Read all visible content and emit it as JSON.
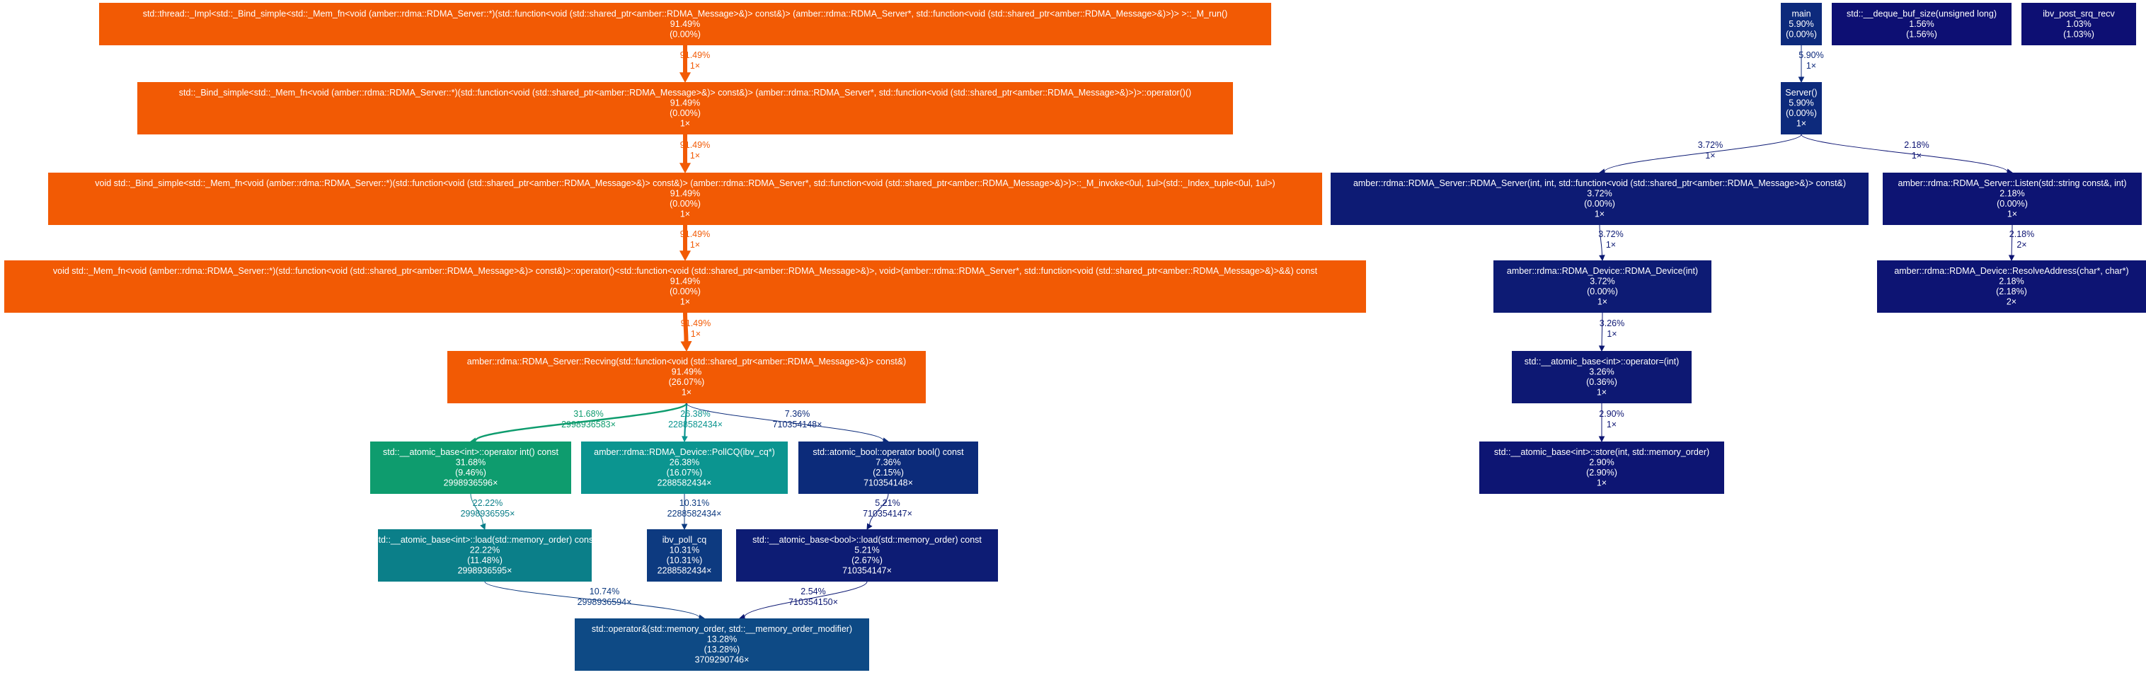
{
  "nodes": [
    {
      "id": "thread_run",
      "color": "#f25a04",
      "lines": [
        "std::thread::_Impl<std::_Bind_simple<std::_Mem_fn<void (amber::rdma::RDMA_Server::*)(std::function<void (std::shared_ptr<amber::RDMA_Message>&)> const&)> (amber::rdma::RDMA_Server*, std::function<void (std::shared_ptr<amber::RDMA_Message>&)>)> >::_M_run()",
        "91.49%",
        "(0.00%)"
      ]
    },
    {
      "id": "bind_op",
      "color": "#f25a04",
      "lines": [
        "std::_Bind_simple<std::_Mem_fn<void (amber::rdma::RDMA_Server::*)(std::function<void (std::shared_ptr<amber::RDMA_Message>&)> const&)> (amber::rdma::RDMA_Server*, std::function<void (std::shared_ptr<amber::RDMA_Message>&)>)>::operator()()",
        "91.49%",
        "(0.00%)",
        "1×"
      ]
    },
    {
      "id": "m_invoke",
      "color": "#f25a04",
      "lines": [
        "void std::_Bind_simple<std::_Mem_fn<void (amber::rdma::RDMA_Server::*)(std::function<void (std::shared_ptr<amber::RDMA_Message>&)> const&)> (amber::rdma::RDMA_Server*, std::function<void (std::shared_ptr<amber::RDMA_Message>&)>)>::_M_invoke<0ul, 1ul>(std::_Index_tuple<0ul, 1ul>)",
        "91.49%",
        "(0.00%)",
        "1×"
      ]
    },
    {
      "id": "mem_fn_op",
      "color": "#f25a04",
      "lines": [
        "void std::_Mem_fn<void (amber::rdma::RDMA_Server::*)(std::function<void (std::shared_ptr<amber::RDMA_Message>&)> const&)>::operator()<std::function<void (std::shared_ptr<amber::RDMA_Message>&)>, void>(amber::rdma::RDMA_Server*, std::function<void (std::shared_ptr<amber::RDMA_Message>&)>&&) const",
        "91.49%",
        "(0.00%)",
        "1×"
      ]
    },
    {
      "id": "recving",
      "color": "#f25a04",
      "lines": [
        "amber::rdma::RDMA_Server::Recving(std::function<void (std::shared_ptr<amber::RDMA_Message>&)> const&)",
        "91.49%",
        "(26.07%)",
        "1×"
      ]
    },
    {
      "id": "atomic_int_op",
      "color": "#0e9c6e",
      "lines": [
        "std::__atomic_base<int>::operator int() const",
        "31.68%",
        "(9.46%)",
        "2998936596×"
      ]
    },
    {
      "id": "pollcq",
      "color": "#0b9590",
      "lines": [
        "amber::rdma::RDMA_Device::PollCQ(ibv_cq*)",
        "26.38%",
        "(16.07%)",
        "2288582434×"
      ]
    },
    {
      "id": "atomic_bool_op",
      "color": "#0c2b7a",
      "lines": [
        "std::atomic_bool::operator bool() const",
        "7.36%",
        "(2.15%)",
        "710354148×"
      ]
    },
    {
      "id": "atomic_int_load",
      "color": "#0b7f89",
      "lines": [
        "std::__atomic_base<int>::load(std::memory_order) const",
        "22.22%",
        "(11.48%)",
        "2998936595×"
      ]
    },
    {
      "id": "ibv_poll_cq",
      "color": "#0d3a80",
      "lines": [
        "ibv_poll_cq",
        "10.31%",
        "(10.31%)",
        "2288582434×"
      ]
    },
    {
      "id": "atomic_bool_load",
      "color": "#0d1c74",
      "lines": [
        "std::__atomic_base<bool>::load(std::memory_order) const",
        "5.21%",
        "(2.67%)",
        "710354147×"
      ]
    },
    {
      "id": "mem_order_op",
      "color": "#0e4a85",
      "lines": [
        "std::operator&(std::memory_order, std::__memory_order_modifier)",
        "13.28%",
        "(13.28%)",
        "3709290746×"
      ]
    },
    {
      "id": "main",
      "color": "#0d2a7c",
      "lines": [
        "main",
        "5.90%",
        "(0.00%)"
      ]
    },
    {
      "id": "deque_buf",
      "color": "#0d0f73",
      "lines": [
        "std::__deque_buf_size(unsigned long)",
        "1.56%",
        "(1.56%)"
      ]
    },
    {
      "id": "ibv_post_srq",
      "color": "#0d0f73",
      "lines": [
        "ibv_post_srq_recv",
        "1.03%",
        "(1.03%)"
      ]
    },
    {
      "id": "server",
      "color": "#0d2a7c",
      "lines": [
        "Server()",
        "5.90%",
        "(0.00%)",
        "1×"
      ]
    },
    {
      "id": "rdma_server_ctor",
      "color": "#0d1b74",
      "lines": [
        "amber::rdma::RDMA_Server::RDMA_Server(int, int, std::function<void (std::shared_ptr<amber::RDMA_Message>&)> const&)",
        "3.72%",
        "(0.00%)",
        "1×"
      ]
    },
    {
      "id": "listen",
      "color": "#0d1473",
      "lines": [
        "amber::rdma::RDMA_Server::Listen(std::string const&, int)",
        "2.18%",
        "(0.00%)",
        "1×"
      ]
    },
    {
      "id": "rdma_device_ctor",
      "color": "#0d1b74",
      "lines": [
        "amber::rdma::RDMA_Device::RDMA_Device(int)",
        "3.72%",
        "(0.00%)",
        "1×"
      ]
    },
    {
      "id": "resolve_addr",
      "color": "#0d1473",
      "lines": [
        "amber::rdma::RDMA_Device::ResolveAddress(char*, char*)",
        "2.18%",
        "(2.18%)",
        "2×"
      ]
    },
    {
      "id": "atomic_int_assign",
      "color": "#0d1873",
      "lines": [
        "std::__atomic_base<int>::operator=(int)",
        "3.26%",
        "(0.36%)",
        "1×"
      ]
    },
    {
      "id": "atomic_int_store",
      "color": "#0d1573",
      "lines": [
        "std::__atomic_base<int>::store(int, std::memory_order)",
        "2.90%",
        "(2.90%)",
        "1×"
      ]
    }
  ],
  "edges": [
    {
      "from": "thread_run",
      "to": "bind_op",
      "color": "#f25a04",
      "label": [
        "91.49%",
        "1×"
      ]
    },
    {
      "from": "bind_op",
      "to": "m_invoke",
      "color": "#f25a04",
      "label": [
        "91.49%",
        "1×"
      ]
    },
    {
      "from": "m_invoke",
      "to": "mem_fn_op",
      "color": "#f25a04",
      "label": [
        "91.49%",
        "1×"
      ]
    },
    {
      "from": "mem_fn_op",
      "to": "recving",
      "color": "#f25a04",
      "label": [
        "91.49%",
        "1×"
      ]
    },
    {
      "from": "recving",
      "to": "atomic_int_op",
      "color": "#0e9c6e",
      "label": [
        "31.68%",
        "2998936583×"
      ]
    },
    {
      "from": "recving",
      "to": "pollcq",
      "color": "#0b9590",
      "label": [
        "26.38%",
        "2288582434×"
      ]
    },
    {
      "from": "recving",
      "to": "atomic_bool_op",
      "color": "#0c2b7a",
      "label": [
        "7.36%",
        "710354148×"
      ]
    },
    {
      "from": "atomic_int_op",
      "to": "atomic_int_load",
      "color": "#0b7f89",
      "label": [
        "22.22%",
        "2998936595×"
      ]
    },
    {
      "from": "pollcq",
      "to": "ibv_poll_cq",
      "color": "#0d3a80",
      "label": [
        "10.31%",
        "2288582434×"
      ]
    },
    {
      "from": "atomic_bool_op",
      "to": "atomic_bool_load",
      "color": "#0d1c74",
      "label": [
        "5.21%",
        "710354147×"
      ]
    },
    {
      "from": "atomic_int_load",
      "to": "mem_order_op",
      "color": "#0d3a80",
      "label": [
        "10.74%",
        "2998936594×"
      ]
    },
    {
      "from": "atomic_bool_load",
      "to": "mem_order_op",
      "color": "#0d1873",
      "label": [
        "2.54%",
        "710354150×"
      ]
    },
    {
      "from": "main",
      "to": "server",
      "color": "#0d2a7c",
      "label": [
        "5.90%",
        "1×"
      ]
    },
    {
      "from": "server",
      "to": "rdma_server_ctor",
      "color": "#0d1b74",
      "label": [
        "3.72%",
        "1×"
      ]
    },
    {
      "from": "server",
      "to": "listen",
      "color": "#0d1473",
      "label": [
        "2.18%",
        "1×"
      ]
    },
    {
      "from": "rdma_server_ctor",
      "to": "rdma_device_ctor",
      "color": "#0d1b74",
      "label": [
        "3.72%",
        "1×"
      ]
    },
    {
      "from": "listen",
      "to": "resolve_addr",
      "color": "#0d1473",
      "label": [
        "2.18%",
        "2×"
      ]
    },
    {
      "from": "rdma_device_ctor",
      "to": "atomic_int_assign",
      "color": "#0d1873",
      "label": [
        "3.26%",
        "1×"
      ]
    },
    {
      "from": "atomic_int_assign",
      "to": "atomic_int_store",
      "color": "#0d1573",
      "label": [
        "2.90%",
        "1×"
      ]
    }
  ]
}
